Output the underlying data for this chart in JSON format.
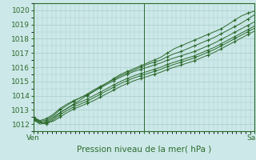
{
  "xlabel": "Pression niveau de la mer( hPa )",
  "bg_color": "#cce8e8",
  "grid_color": "#aacccc",
  "line_color": "#2d6b2d",
  "marker_color": "#2d6b2d",
  "xlim": [
    0,
    48
  ],
  "ylim": [
    1011.5,
    1020.5
  ],
  "yticks": [
    1012,
    1013,
    1014,
    1015,
    1016,
    1017,
    1018,
    1019,
    1020
  ],
  "xtick_positions": [
    0,
    24,
    48
  ],
  "xtick_labels": [
    "Ven",
    "",
    "Sam"
  ],
  "vline_x": 24,
  "series": [
    [
      1012.3,
      1012.1,
      1012.2,
      1012.5,
      1012.8,
      1013.1,
      1013.4,
      1013.7,
      1014.0,
      1014.3,
      1014.6,
      1014.9,
      1015.2,
      1015.5,
      1015.7,
      1015.9,
      1016.1,
      1016.3,
      1016.5,
      1016.7,
      1017.0,
      1017.3,
      1017.5,
      1017.7,
      1017.9,
      1018.1,
      1018.3,
      1018.5,
      1018.7,
      1019.0,
      1019.3,
      1019.6,
      1019.8,
      1019.95
    ],
    [
      1012.4,
      1012.2,
      1012.3,
      1012.6,
      1013.0,
      1013.3,
      1013.6,
      1013.85,
      1014.1,
      1014.4,
      1014.65,
      1014.9,
      1015.15,
      1015.4,
      1015.6,
      1015.8,
      1016.0,
      1016.2,
      1016.35,
      1016.5,
      1016.75,
      1016.95,
      1017.1,
      1017.3,
      1017.5,
      1017.7,
      1017.9,
      1018.1,
      1018.35,
      1018.6,
      1018.85,
      1019.1,
      1019.4,
      1019.7
    ],
    [
      1012.5,
      1012.25,
      1012.4,
      1012.7,
      1013.1,
      1013.4,
      1013.65,
      1013.85,
      1014.05,
      1014.3,
      1014.55,
      1014.8,
      1015.05,
      1015.3,
      1015.5,
      1015.7,
      1015.85,
      1016.0,
      1016.15,
      1016.3,
      1016.5,
      1016.65,
      1016.8,
      1016.95,
      1017.1,
      1017.3,
      1017.5,
      1017.7,
      1017.95,
      1018.2,
      1018.45,
      1018.7,
      1018.95,
      1019.2
    ],
    [
      1012.3,
      1012.0,
      1012.1,
      1012.4,
      1012.8,
      1013.1,
      1013.35,
      1013.55,
      1013.75,
      1014.0,
      1014.25,
      1014.5,
      1014.75,
      1015.0,
      1015.2,
      1015.4,
      1015.55,
      1015.7,
      1015.85,
      1016.0,
      1016.2,
      1016.35,
      1016.5,
      1016.65,
      1016.8,
      1017.0,
      1017.2,
      1017.4,
      1017.65,
      1017.9,
      1018.15,
      1018.4,
      1018.65,
      1018.9
    ],
    [
      1012.4,
      1012.1,
      1012.0,
      1012.3,
      1012.65,
      1012.95,
      1013.2,
      1013.4,
      1013.6,
      1013.85,
      1014.1,
      1014.35,
      1014.6,
      1014.85,
      1015.05,
      1015.25,
      1015.4,
      1015.55,
      1015.7,
      1015.85,
      1016.05,
      1016.2,
      1016.35,
      1016.5,
      1016.65,
      1016.85,
      1017.05,
      1017.25,
      1017.5,
      1017.75,
      1018.0,
      1018.25,
      1018.5,
      1018.75
    ],
    [
      1012.5,
      1012.15,
      1012.1,
      1012.2,
      1012.5,
      1012.8,
      1013.05,
      1013.25,
      1013.45,
      1013.65,
      1013.9,
      1014.15,
      1014.4,
      1014.65,
      1014.85,
      1015.05,
      1015.2,
      1015.35,
      1015.5,
      1015.65,
      1015.85,
      1016.0,
      1016.15,
      1016.3,
      1016.45,
      1016.65,
      1016.85,
      1017.05,
      1017.3,
      1017.55,
      1017.8,
      1018.05,
      1018.3,
      1018.55
    ]
  ],
  "marker_every": 2
}
